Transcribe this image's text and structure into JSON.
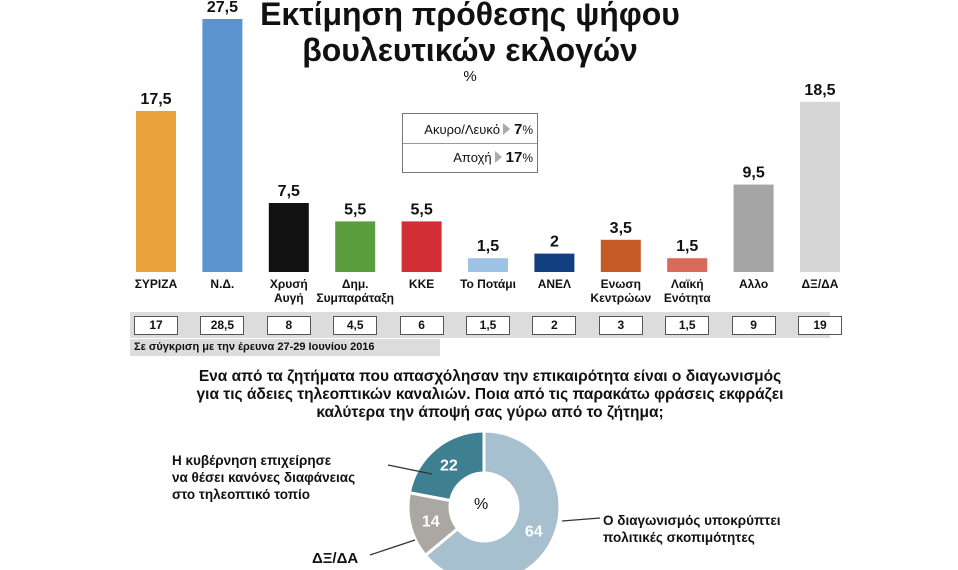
{
  "title_line1": "Εκτίμηση πρόθεσης ψήφου",
  "title_line2": "βουλευτικών εκλογών",
  "unit": "%",
  "legend": {
    "invalid": {
      "label": "Ακυρο/Λευκό",
      "value": "7",
      "unit": "%"
    },
    "abstention": {
      "label": "Αποχή",
      "value": "17",
      "unit": "%"
    }
  },
  "comparison_note": "Σε σύγκριση με την έρευνα 27-29 Ιουνίου 2016",
  "question": [
    "Ενα από τα ζητήματα που απασχόλησαν την επικαιρότητα είναι ο διαγωνισμός",
    "για τις άδειες τηλεοπτικών καναλιών. Ποια από τις παρακάτω φράσεις εκφράζει",
    "καλύτερα την άποψή σας γύρω από το ζήτημα;"
  ],
  "pie_labels": {
    "government": [
      "Η κυβέρνηση επιχείρησε",
      "να θέσει κανόνες διαφάνειας",
      "στο τηλεοπτικό τοπίο"
    ],
    "conceals": [
      "Ο διαγωνισμός υποκρύπτει",
      "πολιτικές σκοπιμότητες"
    ],
    "na": "ΔΞ/ΔΑ",
    "center": "%"
  },
  "chart_data": [
    {
      "type": "bar",
      "title": "Εκτίμηση πρόθεσης ψήφου βουλευτικών εκλογών",
      "unit": "%",
      "categories": [
        [
          "ΣΥΡΙΖΑ"
        ],
        [
          "Ν.Δ."
        ],
        [
          "Χρυσή",
          "Αυγή"
        ],
        [
          "Δημ.",
          "Συμπαράταξη"
        ],
        [
          "ΚΚΕ"
        ],
        [
          "Το Ποτάμι"
        ],
        [
          "ΑΝΕΛ"
        ],
        [
          "Ενωση",
          "Κεντρώων"
        ],
        [
          "Λαϊκή",
          "Ενότητα"
        ],
        [
          "Αλλο"
        ],
        [
          "ΔΞ/ΔΑ"
        ]
      ],
      "values": [
        17.5,
        27.5,
        7.5,
        5.5,
        5.5,
        1.5,
        2,
        3.5,
        1.5,
        9.5,
        18.5
      ],
      "value_labels": [
        "17,5",
        "27,5",
        "7,5",
        "5,5",
        "5,5",
        "1,5",
        "2",
        "3,5",
        "1,5",
        "9,5",
        "18,5"
      ],
      "previous_values": [
        17,
        28.5,
        8,
        4.5,
        6,
        1.5,
        2,
        3,
        1.5,
        9,
        19
      ],
      "previous_labels": [
        "17",
        "28,5",
        "8",
        "4,5",
        "6",
        "1,5",
        "2",
        "3",
        "1,5",
        "9",
        "19"
      ],
      "colors": [
        "#E8A33D",
        "#5B93CF",
        "#111111",
        "#5A9E3F",
        "#D12E36",
        "#9CC3E6",
        "#123F80",
        "#C45A26",
        "#D8695B",
        "#A5A5A5",
        "#D6D6D6"
      ],
      "ylim": [
        0,
        28
      ]
    },
    {
      "type": "pie",
      "style": "donut",
      "slices": [
        {
          "value": 64,
          "label": "64",
          "color": "#A7C0CF"
        },
        {
          "value": 14,
          "label": "14",
          "color": "#ABA7A3"
        },
        {
          "value": 22,
          "label": "22",
          "color": "#3E7F92"
        }
      ]
    }
  ]
}
